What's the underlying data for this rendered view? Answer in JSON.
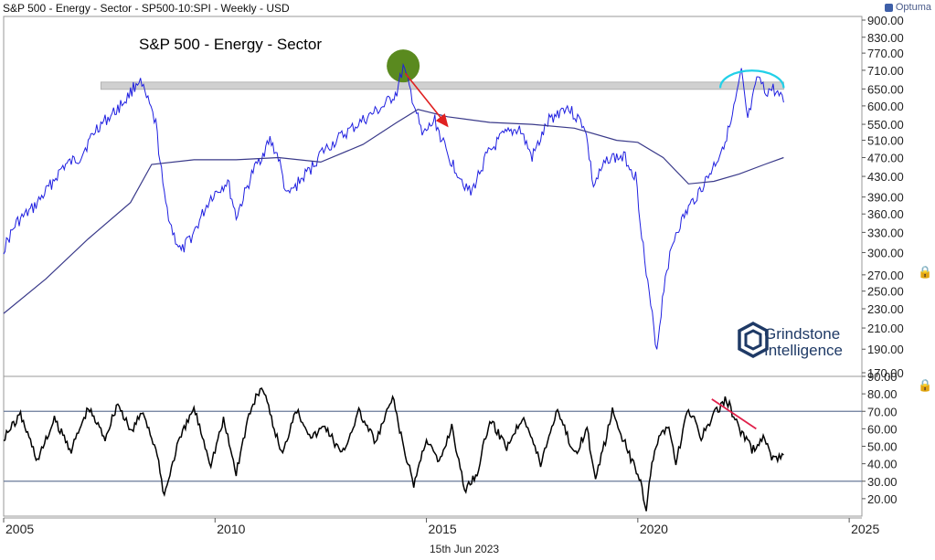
{
  "header": {
    "title": "S&P 500 - Energy - Sector  - SP500-10:SPI - Weekly - USD",
    "brand": "Optuma",
    "date": "15th Jun 2023"
  },
  "watermark": {
    "line1": "Grindstone",
    "line2": "Intelligence"
  },
  "colors": {
    "price": "#1f1fe0",
    "moving_average": "#3a3a8a",
    "resistance_band": "#d0d0d0",
    "highlight_circle": "#5a8a1f",
    "down_arrow": "#e02020",
    "top_arc": "#22d0e8",
    "divergence_line": "#e0204a",
    "rsi": "#000000"
  },
  "chart_data": [
    {
      "type": "line",
      "title": "S&P 500 - Energy - Sector",
      "y_scale": "log",
      "ylim": [
        170,
        900
      ],
      "y_ticks": [
        "900.00",
        "830.00",
        "770.00",
        "710.00",
        "650.00",
        "600.00",
        "550.00",
        "510.00",
        "470.00",
        "430.00",
        "390.00",
        "360.00",
        "330.00",
        "300.00",
        "270.00",
        "250.00",
        "230.00",
        "210.00",
        "190.00",
        "170.00"
      ],
      "x_ticks": [
        "2005",
        "2010",
        "2015",
        "2020",
        "2025"
      ],
      "xlim": [
        2005.0,
        2025.3
      ],
      "series": [
        {
          "x": [
            2005.0,
            2005.3,
            2005.7,
            2006.0,
            2006.4,
            2006.8,
            2007.2,
            2007.6,
            2007.9,
            2008.2,
            2008.45,
            2008.6,
            2008.8,
            2009.0,
            2009.2,
            2009.5,
            2009.9,
            2010.3,
            2010.5,
            2010.9,
            2011.3,
            2011.5,
            2011.7,
            2012.0,
            2012.3,
            2012.5,
            2013.0,
            2013.5,
            2014.0,
            2014.3,
            2014.45,
            2014.7,
            2014.9,
            2015.2,
            2015.5,
            2015.8,
            2016.05,
            2016.4,
            2016.8,
            2017.2,
            2017.5,
            2017.9,
            2018.3,
            2018.75,
            2018.95,
            2019.3,
            2019.7,
            2019.95,
            2020.2,
            2020.45,
            2020.65,
            2020.9,
            2021.2,
            2021.6,
            2021.9,
            2022.2,
            2022.45,
            2022.6,
            2022.85,
            2023.0,
            2023.2,
            2023.45
          ],
          "y": [
            305,
            345,
            370,
            400,
            450,
            470,
            540,
            580,
            620,
            680,
            600,
            550,
            390,
            330,
            300,
            330,
            390,
            420,
            355,
            440,
            510,
            470,
            390,
            420,
            450,
            480,
            520,
            560,
            600,
            640,
            720,
            610,
            520,
            560,
            475,
            430,
            395,
            470,
            520,
            540,
            470,
            560,
            600,
            545,
            410,
            470,
            470,
            430,
            270,
            190,
            270,
            330,
            370,
            420,
            470,
            550,
            700,
            560,
            690,
            640,
            650,
            610
          ]
        }
      ],
      "moving_average": {
        "x": [
          2005.0,
          2006.0,
          2007.0,
          2008.0,
          2008.5,
          2009.5,
          2010.5,
          2011.5,
          2012.5,
          2013.5,
          2014.3,
          2014.8,
          2015.5,
          2016.5,
          2017.5,
          2018.5,
          2019.5,
          2020.0,
          2020.6,
          2021.2,
          2021.8,
          2022.4,
          2023.0,
          2023.45
        ],
        "y": [
          225,
          265,
          320,
          380,
          455,
          465,
          465,
          470,
          460,
          500,
          555,
          590,
          570,
          555,
          550,
          540,
          510,
          505,
          470,
          415,
          420,
          435,
          455,
          470
        ]
      },
      "annotations": {
        "resistance_level": 660,
        "highlight": {
          "x": 2014.45,
          "y": 725
        },
        "arrow": {
          "from": {
            "x": 2014.5,
            "y": 700
          },
          "to": {
            "x": 2015.5,
            "y": 545
          }
        },
        "arc": {
          "x_start": 2021.95,
          "x_end": 2023.45,
          "y": 670
        }
      }
    },
    {
      "type": "line",
      "ylim": [
        10,
        90
      ],
      "y_ticks": [
        "90.00",
        "80.00",
        "70.00",
        "60.00",
        "50.00",
        "40.00",
        "30.00",
        "20.00"
      ],
      "overbought": 70,
      "oversold": 30,
      "series": [
        {
          "x": [
            2005.0,
            2005.4,
            2005.8,
            2006.2,
            2006.6,
            2007.0,
            2007.4,
            2007.7,
            2008.0,
            2008.3,
            2008.6,
            2008.8,
            2009.1,
            2009.5,
            2009.9,
            2010.2,
            2010.5,
            2010.8,
            2011.1,
            2011.4,
            2011.6,
            2011.9,
            2012.3,
            2012.6,
            2013.0,
            2013.4,
            2013.8,
            2014.2,
            2014.5,
            2014.7,
            2015.0,
            2015.3,
            2015.6,
            2015.9,
            2016.2,
            2016.5,
            2016.9,
            2017.3,
            2017.7,
            2018.1,
            2018.5,
            2018.8,
            2019.0,
            2019.4,
            2019.8,
            2020.0,
            2020.2,
            2020.4,
            2020.7,
            2020.9,
            2021.2,
            2021.5,
            2021.8,
            2022.1,
            2022.4,
            2022.7,
            2023.0,
            2023.2,
            2023.45
          ],
          "y": [
            55,
            68,
            42,
            65,
            48,
            72,
            55,
            75,
            58,
            70,
            48,
            22,
            50,
            72,
            40,
            65,
            35,
            68,
            85,
            60,
            45,
            72,
            55,
            62,
            45,
            70,
            52,
            78,
            45,
            28,
            55,
            40,
            62,
            25,
            35,
            65,
            50,
            68,
            40,
            72,
            45,
            60,
            30,
            70,
            45,
            35,
            15,
            50,
            62,
            40,
            72,
            55,
            68,
            77,
            60,
            48,
            55,
            42,
            45
          ]
        }
      ],
      "divergence": {
        "from": {
          "x": 2021.75,
          "y": 77
        },
        "to": {
          "x": 2022.8,
          "y": 60
        }
      }
    }
  ]
}
